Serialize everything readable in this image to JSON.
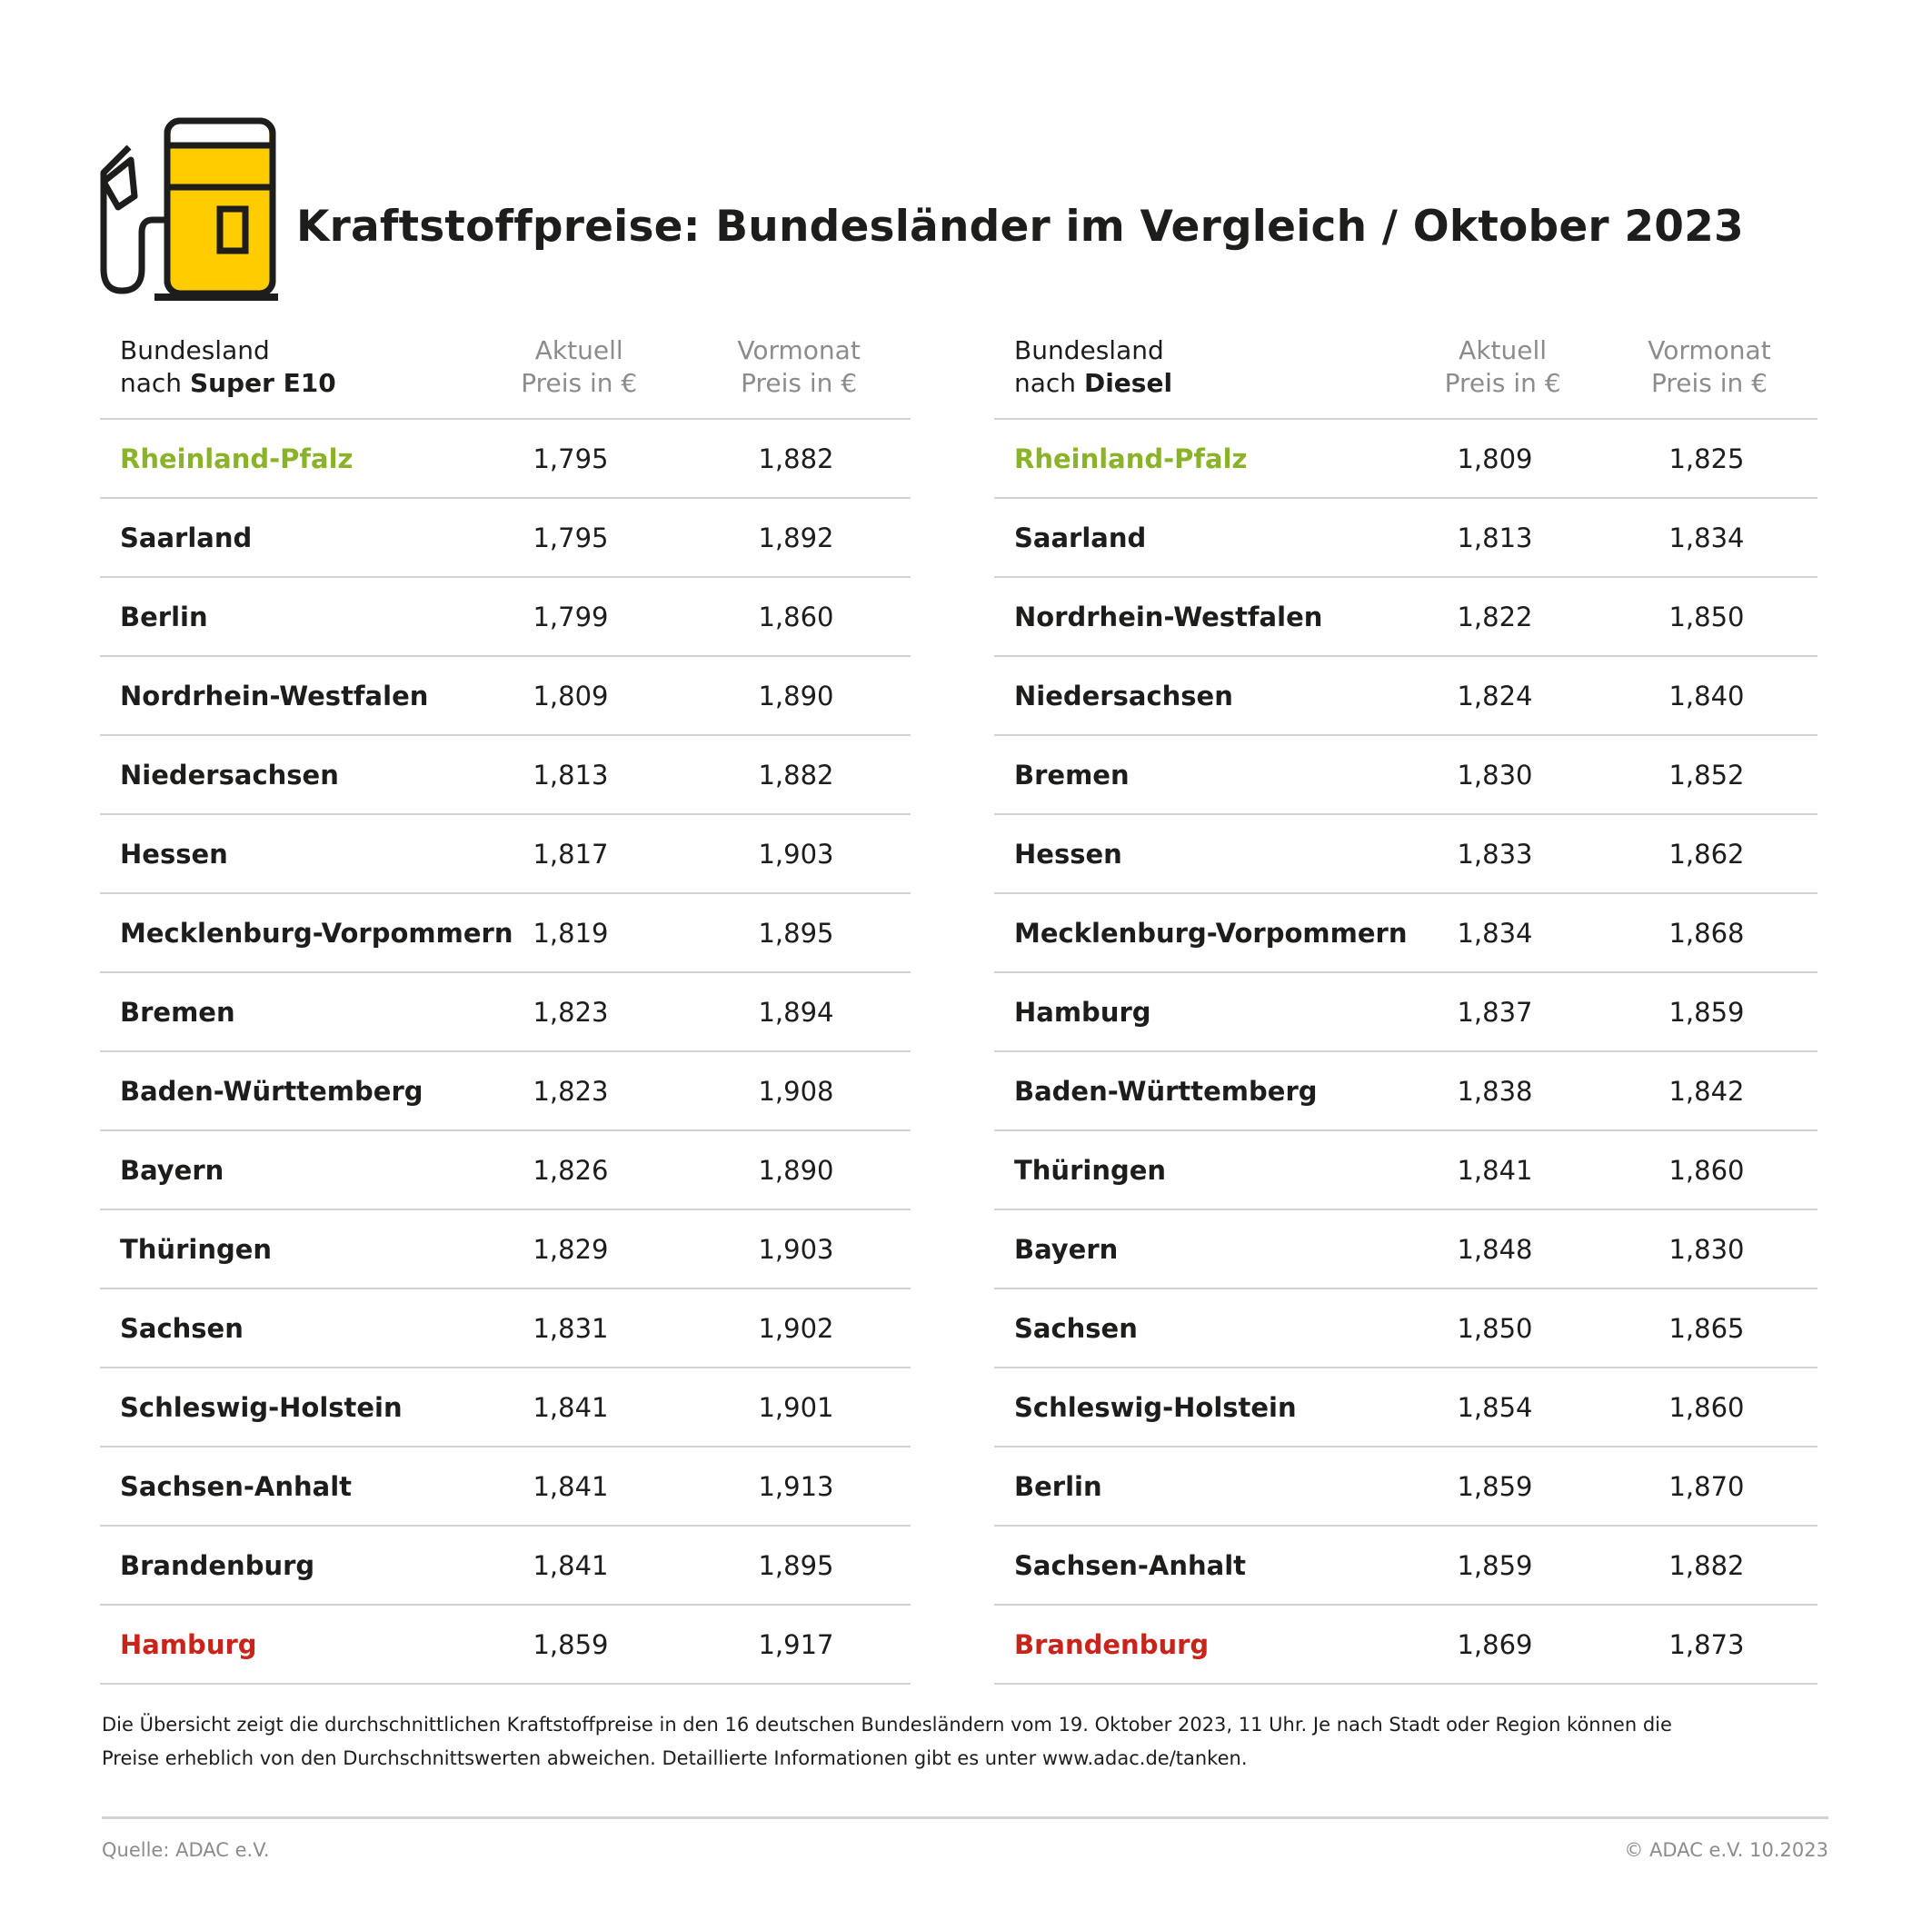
{
  "title": "Kraftstoffpreise: Bundesländer im Vergleich / Oktober 2023",
  "colors": {
    "accent_yellow": "#ffcc00",
    "best": "#8ab32a",
    "worst": "#c8241c"
  },
  "icon": "fuel-pump-icon",
  "super_e10": {
    "header": {
      "name_line1": "Bundesland",
      "name_prefix": "nach ",
      "fuel": "Super E10",
      "current_line1": "Aktuell",
      "current_line2": "Preis in €",
      "previous_line1": "Vormonat",
      "previous_line2": "Preis in €"
    },
    "rows": [
      {
        "state": "Rheinland-Pfalz",
        "current": "1,795",
        "previous": "1,882"
      },
      {
        "state": "Saarland",
        "current": "1,795",
        "previous": "1,892"
      },
      {
        "state": "Berlin",
        "current": "1,799",
        "previous": "1,860"
      },
      {
        "state": "Nordrhein-Westfalen",
        "current": "1,809",
        "previous": "1,890"
      },
      {
        "state": "Niedersachsen",
        "current": "1,813",
        "previous": "1,882"
      },
      {
        "state": "Hessen",
        "current": "1,817",
        "previous": "1,903"
      },
      {
        "state": "Mecklenburg-Vorpommern",
        "current": "1,819",
        "previous": "1,895"
      },
      {
        "state": "Bremen",
        "current": "1,823",
        "previous": "1,894"
      },
      {
        "state": "Baden-Württemberg",
        "current": "1,823",
        "previous": "1,908"
      },
      {
        "state": "Bayern",
        "current": "1,826",
        "previous": "1,890"
      },
      {
        "state": "Thüringen",
        "current": "1,829",
        "previous": "1,903"
      },
      {
        "state": "Sachsen",
        "current": "1,831",
        "previous": "1,902"
      },
      {
        "state": "Schleswig-Holstein",
        "current": "1,841",
        "previous": "1,901"
      },
      {
        "state": "Sachsen-Anhalt",
        "current": "1,841",
        "previous": "1,913"
      },
      {
        "state": "Brandenburg",
        "current": "1,841",
        "previous": "1,895"
      },
      {
        "state": "Hamburg",
        "current": "1,859",
        "previous": "1,917"
      }
    ]
  },
  "diesel": {
    "header": {
      "name_line1": "Bundesland",
      "name_prefix": "nach ",
      "fuel": "Diesel",
      "current_line1": "Aktuell",
      "current_line2": "Preis in €",
      "previous_line1": "Vormonat",
      "previous_line2": "Preis in €"
    },
    "rows": [
      {
        "state": "Rheinland-Pfalz",
        "current": "1,809",
        "previous": "1,825"
      },
      {
        "state": "Saarland",
        "current": "1,813",
        "previous": "1,834"
      },
      {
        "state": "Nordrhein-Westfalen",
        "current": "1,822",
        "previous": "1,850"
      },
      {
        "state": "Niedersachsen",
        "current": "1,824",
        "previous": "1,840"
      },
      {
        "state": "Bremen",
        "current": "1,830",
        "previous": "1,852"
      },
      {
        "state": "Hessen",
        "current": "1,833",
        "previous": "1,862"
      },
      {
        "state": "Mecklenburg-Vorpommern",
        "current": "1,834",
        "previous": "1,868"
      },
      {
        "state": "Hamburg",
        "current": "1,837",
        "previous": "1,859"
      },
      {
        "state": "Baden-Württemberg",
        "current": "1,838",
        "previous": "1,842"
      },
      {
        "state": "Thüringen",
        "current": "1,841",
        "previous": "1,860"
      },
      {
        "state": "Bayern",
        "current": "1,848",
        "previous": "1,830"
      },
      {
        "state": "Sachsen",
        "current": "1,850",
        "previous": "1,865"
      },
      {
        "state": "Schleswig-Holstein",
        "current": "1,854",
        "previous": "1,860"
      },
      {
        "state": "Berlin",
        "current": "1,859",
        "previous": "1,870"
      },
      {
        "state": "Sachsen-Anhalt",
        "current": "1,859",
        "previous": "1,882"
      },
      {
        "state": "Brandenburg",
        "current": "1,869",
        "previous": "1,873"
      }
    ]
  },
  "note_line1": "Die Übersicht zeigt die durchschnittlichen Kraftstoffpreise in den 16 deutschen Bundesländern vom 19. Oktober 2023, 11 Uhr. Je nach Stadt oder Region können die",
  "note_line2": "Preise erheblich von den Durchschnittswerten abweichen. Detaillierte Informationen gibt es unter www.adac.de/tanken.",
  "source": "Quelle: ADAC e.V.",
  "copyright": "© ADAC e.V. 10.2023"
}
